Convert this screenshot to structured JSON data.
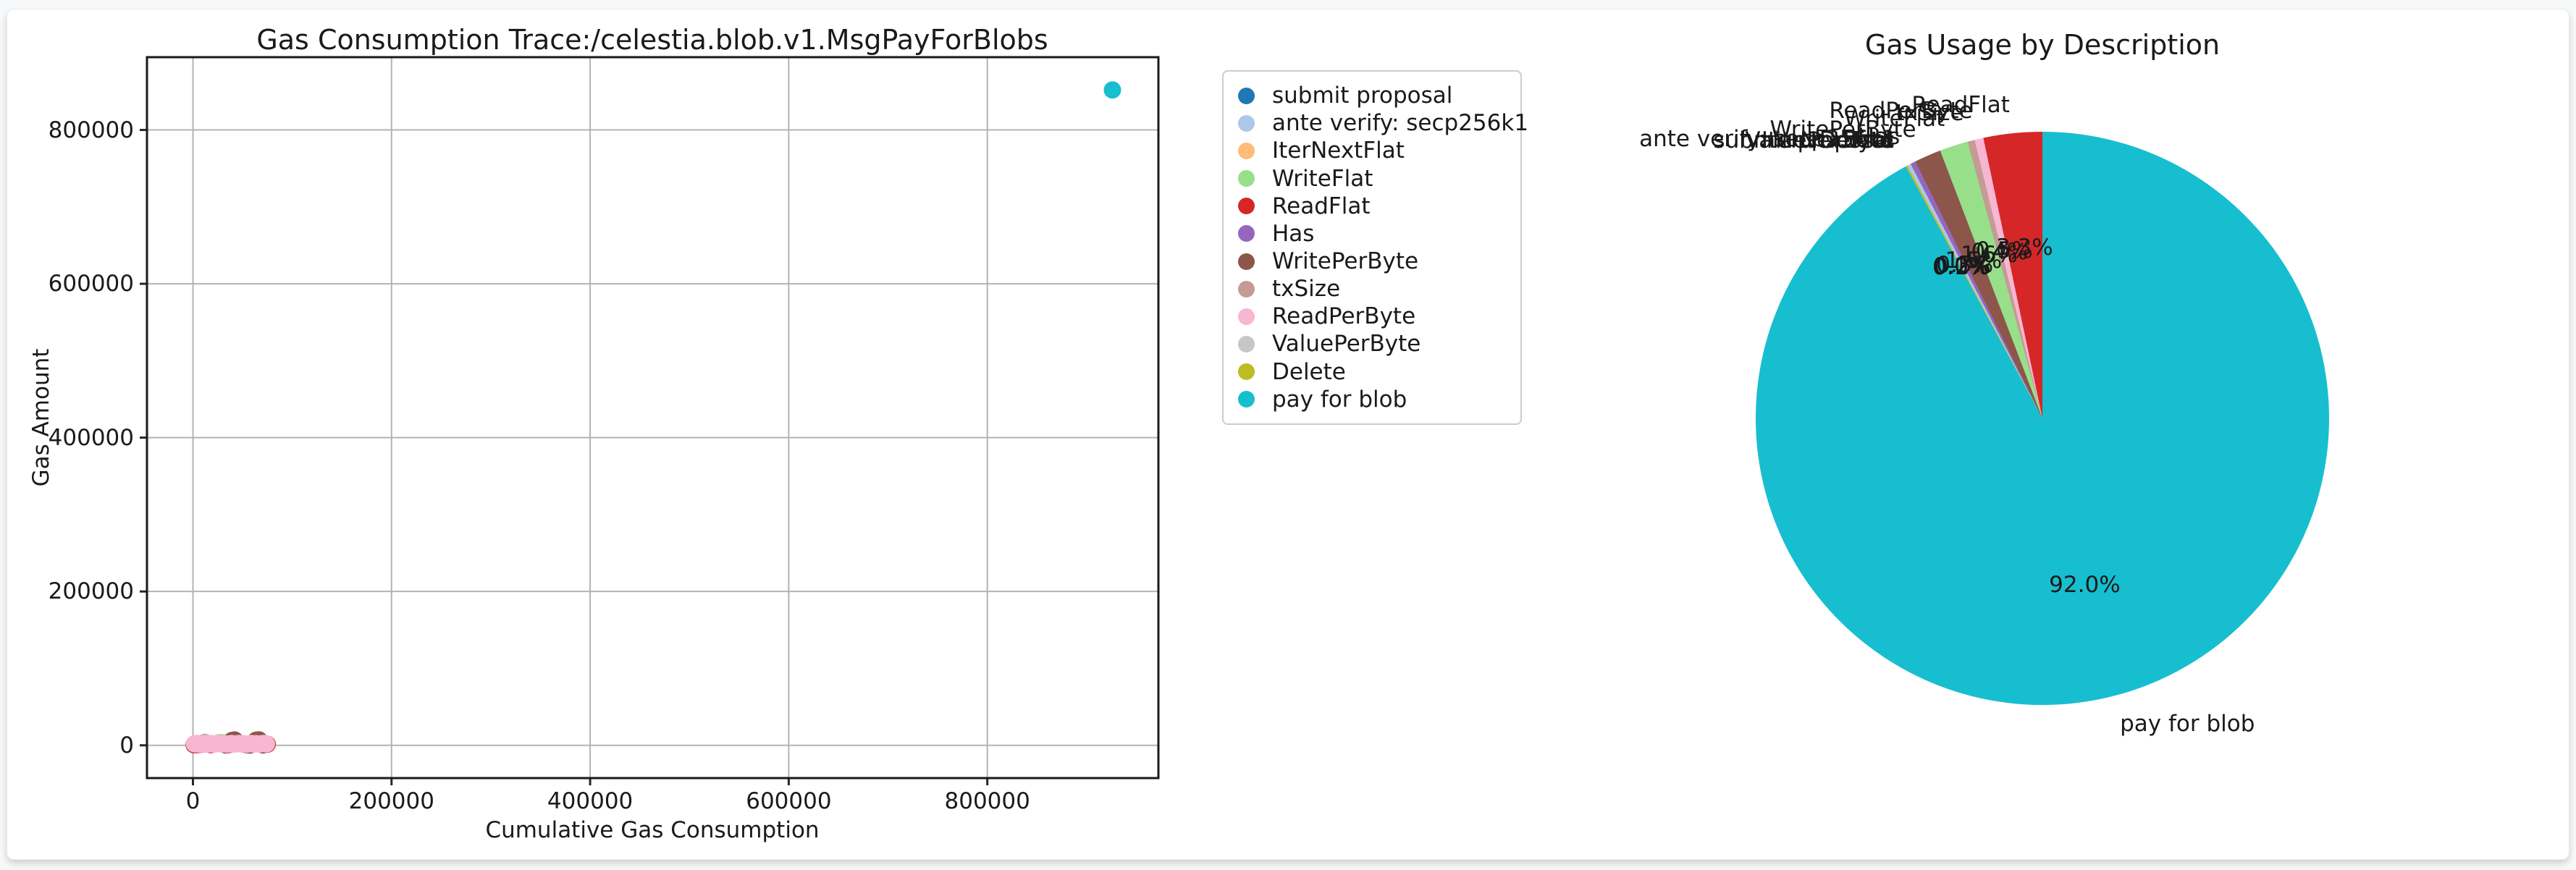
{
  "page": {
    "background": "#f7f8f9",
    "card_background": "#ffffff",
    "text_color": "#1a1a1a",
    "grid_color": "#b3b3b3",
    "spine_color": "#262626"
  },
  "legend": {
    "items": [
      {
        "label": "submit proposal",
        "color": "#1f77b4"
      },
      {
        "label": "ante verify: secp256k1",
        "color": "#aec7e8"
      },
      {
        "label": "IterNextFlat",
        "color": "#ffbb78"
      },
      {
        "label": "WriteFlat",
        "color": "#98df8a"
      },
      {
        "label": "ReadFlat",
        "color": "#d62728"
      },
      {
        "label": "Has",
        "color": "#9467bd"
      },
      {
        "label": "WritePerByte",
        "color": "#8c564b"
      },
      {
        "label": "txSize",
        "color": "#c49c94"
      },
      {
        "label": "ReadPerByte",
        "color": "#f7b6d2"
      },
      {
        "label": "ValuePerByte",
        "color": "#c7c7c7"
      },
      {
        "label": "Delete",
        "color": "#bcbd22"
      },
      {
        "label": "pay for blob",
        "color": "#17becf"
      }
    ]
  },
  "chart_data": [
    {
      "type": "scatter",
      "title": "Gas Consumption Trace:/celestia.blob.v1.MsgPayForBlobs",
      "xlabel": "Cumulative Gas Consumption",
      "ylabel": "Gas Amount",
      "xlim": [
        -46300,
        972300
      ],
      "ylim": [
        -42600,
        894600
      ],
      "x_ticks": [
        0,
        200000,
        400000,
        600000,
        800000
      ],
      "x_tick_labels": [
        "0",
        "200000",
        "400000",
        "600000",
        "800000"
      ],
      "y_ticks": [
        0,
        200000,
        400000,
        600000,
        800000
      ],
      "y_tick_labels": [
        "0",
        "200000",
        "400000",
        "600000",
        "800000"
      ],
      "grid": true,
      "legend_position": "outside-right",
      "series": [
        {
          "name": "submit proposal",
          "color": "#1f77b4",
          "points": [
            [
              2500,
              1500
            ]
          ]
        },
        {
          "name": "ante verify: secp256k1",
          "color": "#aec7e8",
          "points": [
            [
              3500,
              1800
            ]
          ]
        },
        {
          "name": "IterNextFlat",
          "color": "#ffbb78",
          "points": [
            [
              7000,
              1600
            ]
          ]
        },
        {
          "name": "WriteFlat",
          "color": "#98df8a",
          "points": [
            [
              10500,
              3200
            ],
            [
              27000,
              3500
            ],
            [
              31000,
              3300
            ],
            [
              46000,
              3100
            ]
          ]
        },
        {
          "name": "ReadFlat",
          "color": "#d62728",
          "points": [
            [
              1200,
              800
            ],
            [
              5000,
              1000
            ],
            [
              18000,
              900
            ],
            [
              36000,
              1000
            ],
            [
              54000,
              900
            ],
            [
              71000,
              800
            ],
            [
              74800,
              1400
            ]
          ]
        },
        {
          "name": "Has",
          "color": "#9467bd",
          "points": [
            [
              8500,
              1400
            ]
          ]
        },
        {
          "name": "WritePerByte",
          "color": "#8c564b",
          "points": [
            [
              39500,
              6300
            ],
            [
              42000,
              6900
            ],
            [
              63500,
              6500
            ],
            [
              66500,
              7100
            ],
            [
              33000,
              400
            ],
            [
              57000,
              300
            ],
            [
              70500,
              500
            ]
          ]
        },
        {
          "name": "txSize",
          "color": "#c49c94",
          "points": [
            [
              12000,
              3700
            ]
          ]
        },
        {
          "name": "ReadPerByte",
          "color": "#f7b6d2",
          "points": [
            [
              1500,
              1900
            ],
            [
              4000,
              2300
            ],
            [
              6500,
              1700
            ],
            [
              9000,
              2100
            ],
            [
              11500,
              1500
            ],
            [
              14000,
              2400
            ],
            [
              16500,
              1800
            ],
            [
              19000,
              2200
            ],
            [
              21500,
              1600
            ],
            [
              24000,
              2000
            ],
            [
              26500,
              2500
            ],
            [
              29000,
              1700
            ],
            [
              31500,
              2100
            ],
            [
              34000,
              1500
            ],
            [
              36500,
              1900
            ],
            [
              39000,
              2300
            ],
            [
              41500,
              1600
            ],
            [
              44000,
              2000
            ],
            [
              46500,
              2400
            ],
            [
              49000,
              1800
            ],
            [
              51500,
              2200
            ],
            [
              54000,
              1500
            ],
            [
              56500,
              1900
            ],
            [
              59000,
              2300
            ],
            [
              61500,
              1700
            ],
            [
              64000,
              2100
            ],
            [
              66500,
              1600
            ],
            [
              69000,
              2000
            ],
            [
              71500,
              2400
            ],
            [
              74000,
              1800
            ]
          ]
        },
        {
          "name": "ValuePerByte",
          "color": "#c7c7c7",
          "points": [
            [
              20000,
              1900
            ]
          ]
        },
        {
          "name": "Delete",
          "color": "#bcbd22",
          "points": [
            [
              49000,
              1800
            ]
          ]
        },
        {
          "name": "pay for blob",
          "color": "#17becf",
          "points": [
            [
              926000,
              852000
            ]
          ]
        }
      ]
    },
    {
      "type": "pie",
      "title": "Gas Usage by Description",
      "start_angle_deg": 90,
      "direction": "counterclockwise",
      "slices": [
        {
          "label": "ReadFlat",
          "pct": 3.3,
          "pct_label": "3.3%",
          "color": "#d62728"
        },
        {
          "label": "ReadPerByte",
          "pct": 0.5,
          "pct_label": "0.5%",
          "color": "#f7b6d2"
        },
        {
          "label": "txSize",
          "pct": 0.4,
          "pct_label": "0.4%",
          "color": "#c49c94"
        },
        {
          "label": "WriteFlat",
          "pct": 1.6,
          "pct_label": "1.6%",
          "color": "#98df8a"
        },
        {
          "label": "WritePerByte",
          "pct": 1.5,
          "pct_label": "1.5%",
          "color": "#8c564b"
        },
        {
          "label": "Has",
          "pct": 0.3,
          "pct_label": "0.3%",
          "color": "#9467bd"
        },
        {
          "label": "ante verify: secp256k1",
          "pct": 0.2,
          "pct_label": "0.2%",
          "color": "#aec7e8"
        },
        {
          "label": "submit proposal",
          "pct": 0.0,
          "pct_label": "0.0%",
          "color": "#1f77b4"
        },
        {
          "label": "IterNextFlat",
          "pct": 0.0,
          "pct_label": "0.0%",
          "color": "#ffbb78"
        },
        {
          "label": "ValuePerByte",
          "pct": 0.0,
          "pct_label": "0.0%",
          "color": "#c7c7c7"
        },
        {
          "label": "Delete",
          "pct": 0.1,
          "pct_label": "0.1%",
          "color": "#bcbd22"
        },
        {
          "label": "pay for blob",
          "pct": 92.0,
          "pct_label": "92.0%",
          "color": "#17becf"
        }
      ]
    }
  ]
}
